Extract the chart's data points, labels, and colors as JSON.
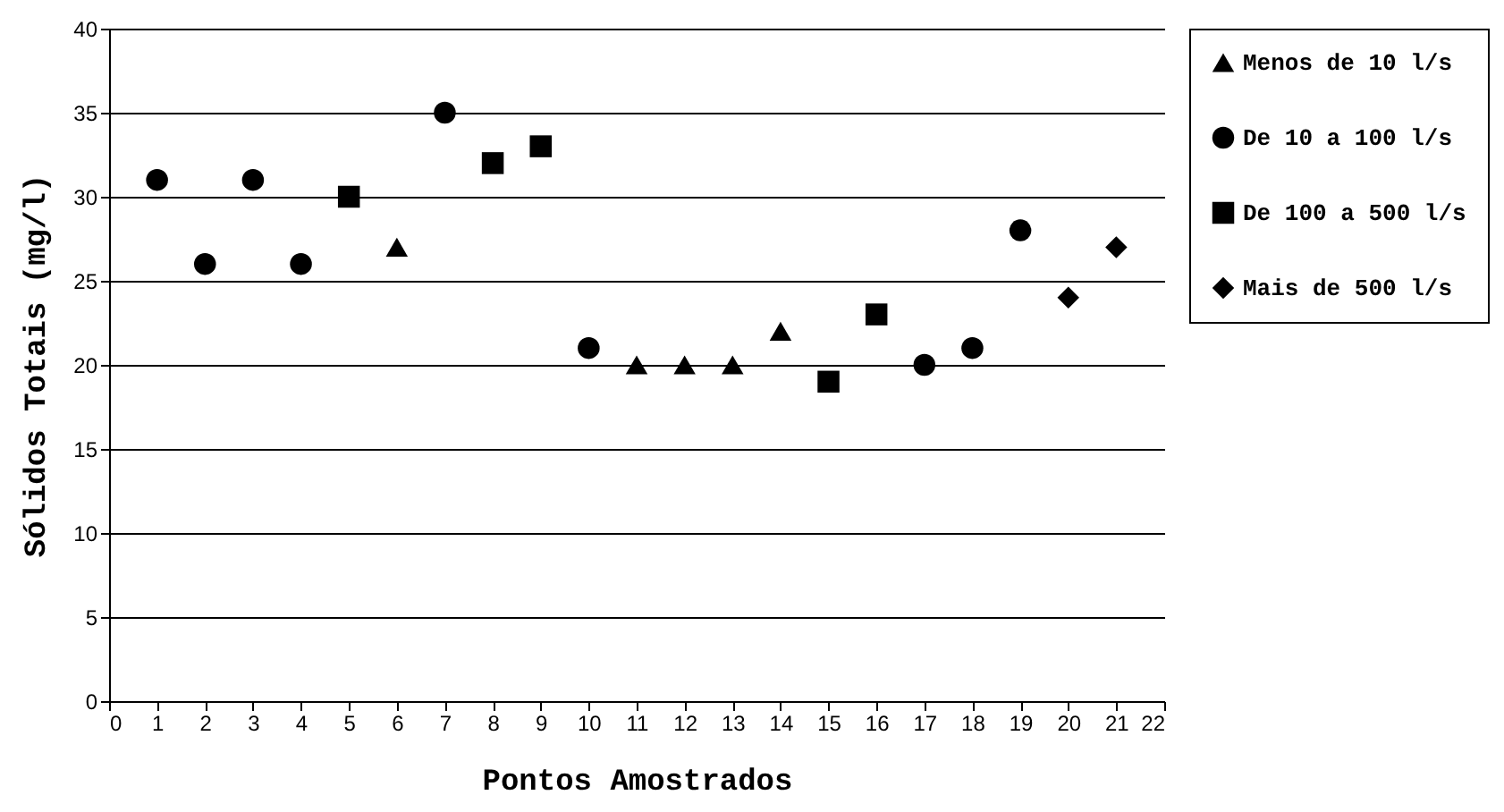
{
  "chart_data": {
    "type": "scatter",
    "xlabel": "Pontos Amostrados",
    "ylabel": "Sólidos Totais (mg/l)",
    "xlim": [
      0,
      22
    ],
    "xticks": [
      0,
      1,
      2,
      3,
      4,
      5,
      6,
      7,
      8,
      9,
      10,
      11,
      12,
      13,
      14,
      15,
      16,
      17,
      18,
      19,
      20,
      21,
      22
    ],
    "ylim": [
      0,
      40
    ],
    "yticks": [
      0,
      5,
      10,
      15,
      20,
      25,
      30,
      35,
      40
    ],
    "grid": "y",
    "legend": "right",
    "series": [
      {
        "name": "Menos de 10 l/s",
        "color": "#000000",
        "marker": "triangle",
        "x": [
          6,
          11,
          12,
          13,
          14
        ],
        "values": [
          27,
          20,
          20,
          20,
          22
        ]
      },
      {
        "name": "De 10 a 100 l/s",
        "color": "#000000",
        "marker": "circle",
        "x": [
          1,
          2,
          3,
          4,
          7,
          10,
          17,
          18,
          19
        ],
        "values": [
          31,
          26,
          31,
          26,
          35,
          21,
          20,
          21,
          28
        ]
      },
      {
        "name": "De 100 a 500 l/s",
        "color": "#000000",
        "marker": "square",
        "x": [
          5,
          8,
          9,
          15,
          16
        ],
        "values": [
          30,
          32,
          33,
          19,
          23
        ]
      },
      {
        "name": "Mais de 500 l/s",
        "color": "#000000",
        "marker": "diamond",
        "x": [
          20,
          21
        ],
        "values": [
          24,
          27
        ]
      }
    ]
  }
}
